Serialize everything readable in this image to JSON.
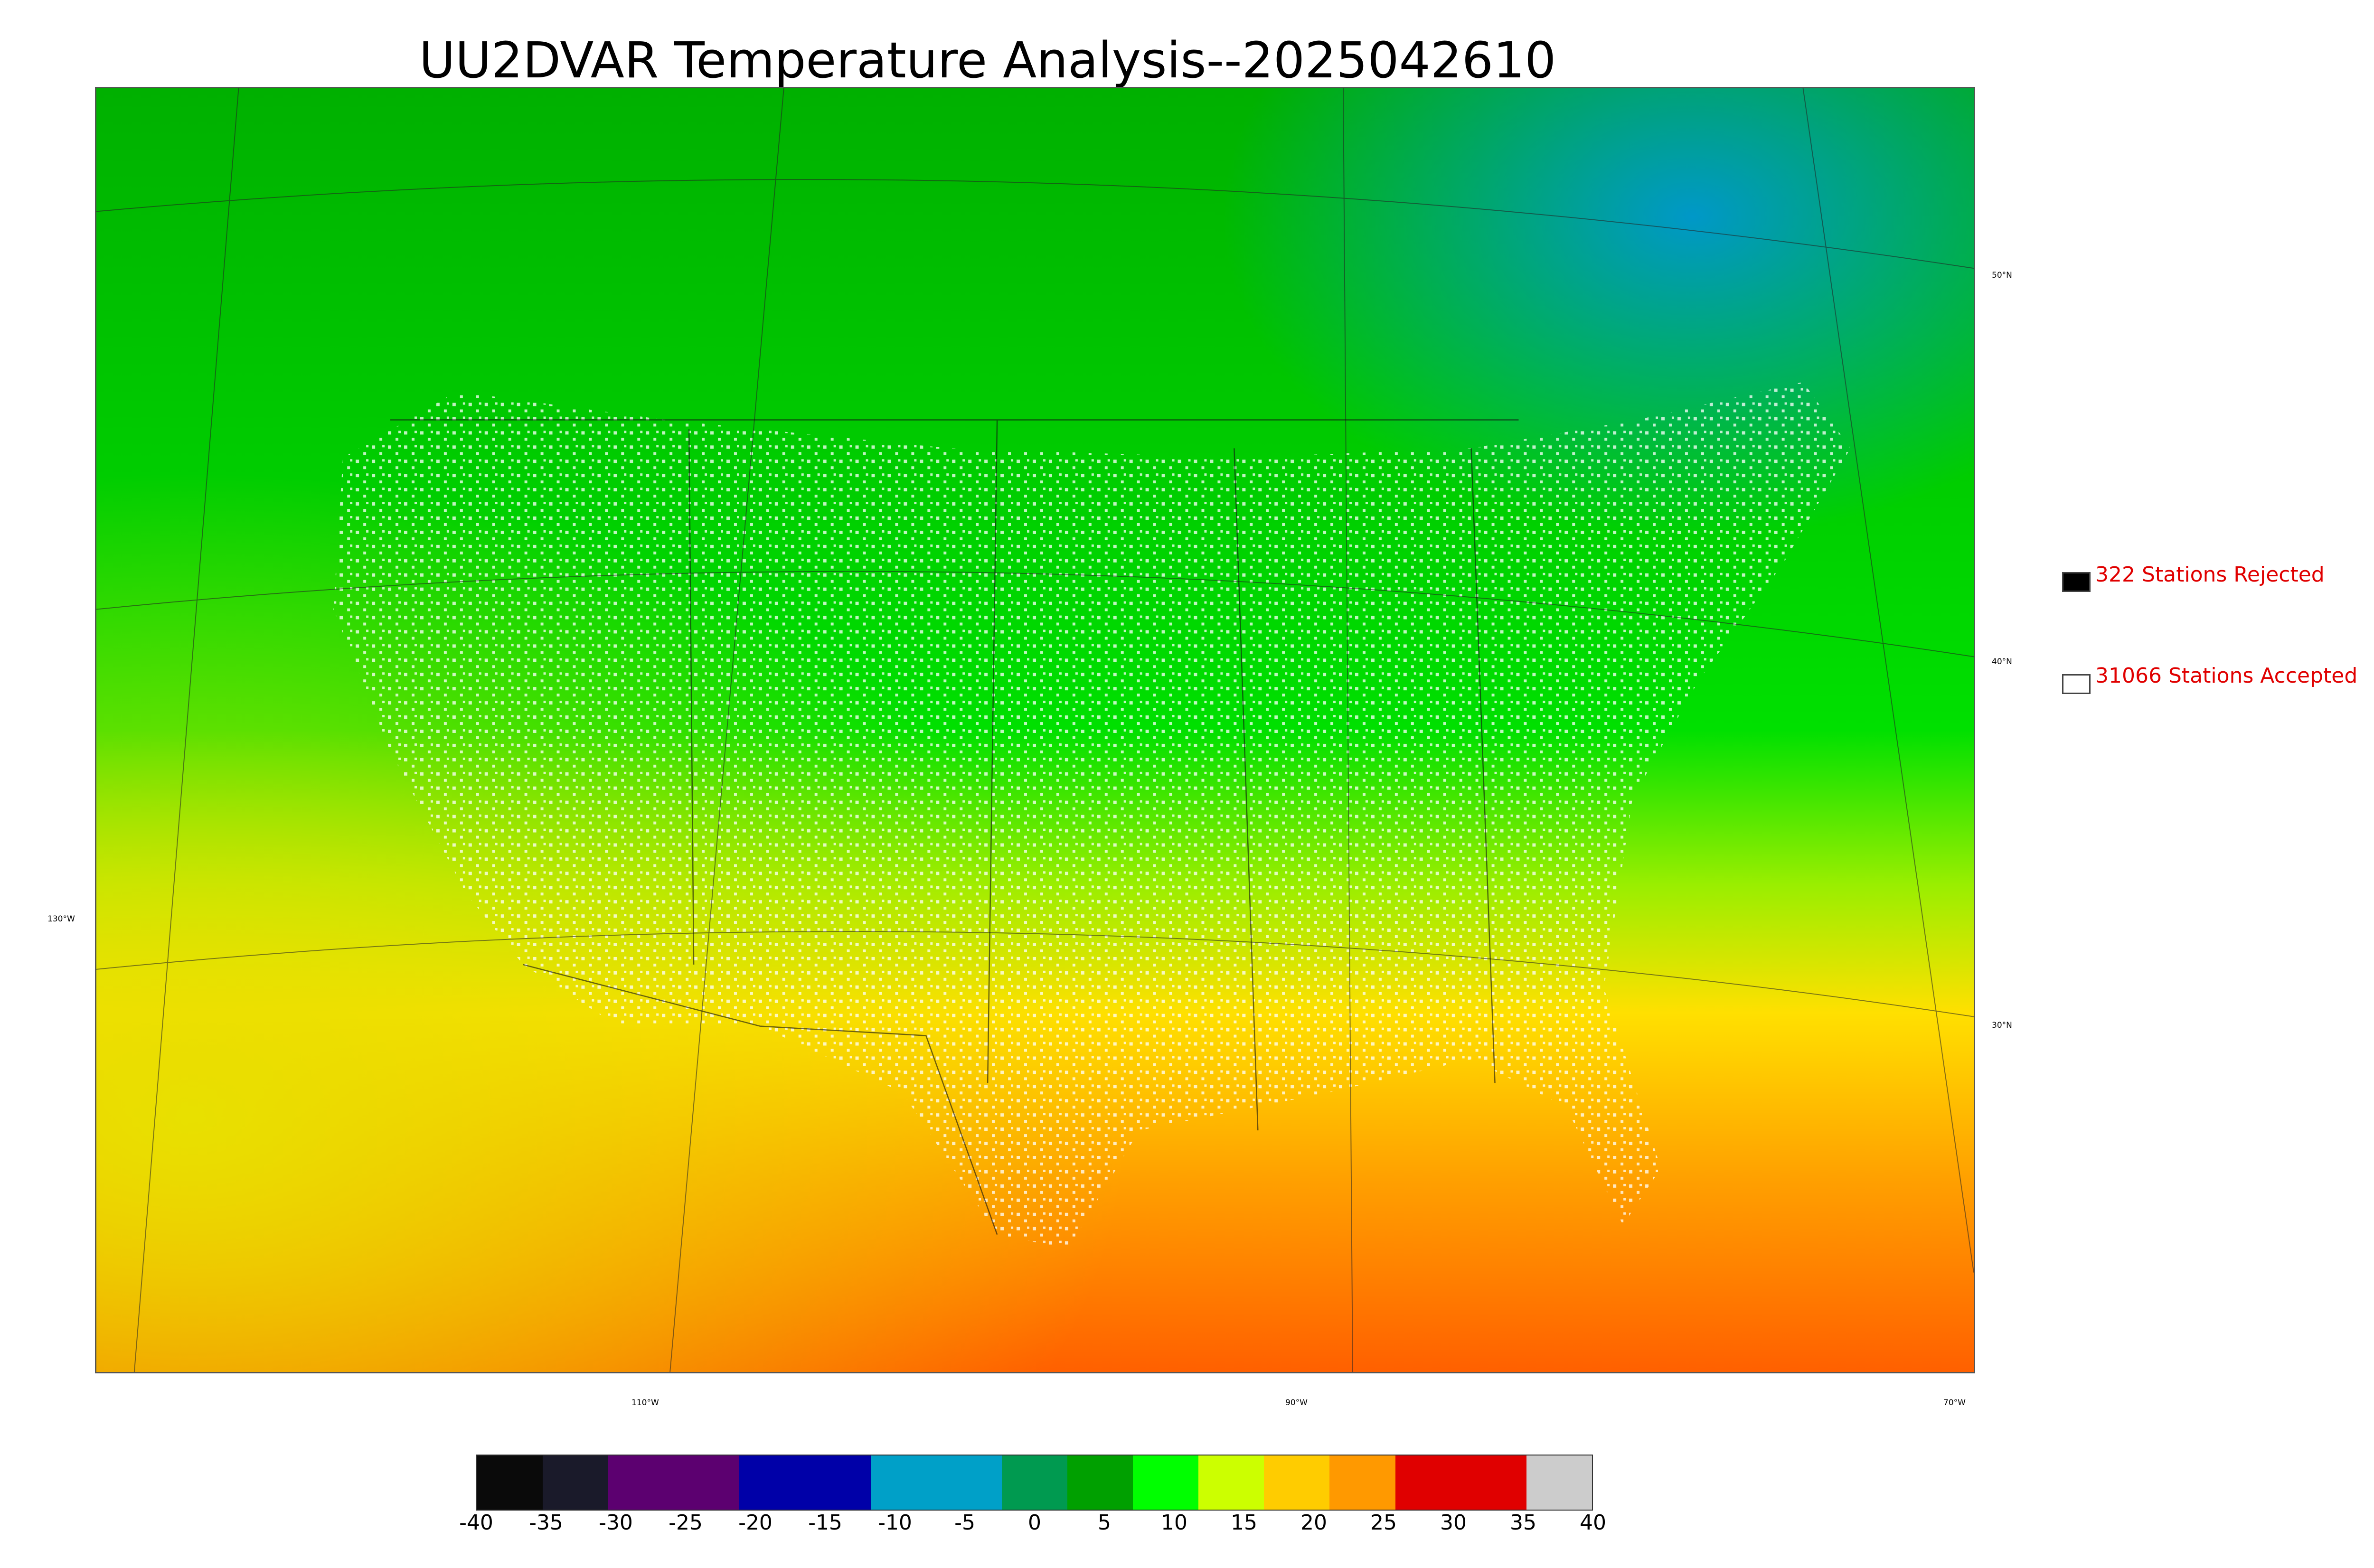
{
  "title": "UU2DVAR Temperature Analysis--2025042610",
  "legend": {
    "rejected": {
      "label": "322 Stations Rejected",
      "swatch": "#000000"
    },
    "accepted": {
      "label": "31066 Stations Accepted",
      "swatch": "#ffffff"
    }
  },
  "graticule": {
    "lat_labels": [
      "50°N",
      "40°N",
      "30°N"
    ],
    "lon_labels": [
      "130°W",
      "110°W",
      "90°W",
      "70°W"
    ]
  },
  "colorbar": {
    "ticks": [
      "-40",
      "-35",
      "-30",
      "-25",
      "-20",
      "-15",
      "-10",
      "-5",
      "0",
      "5",
      "10",
      "15",
      "20",
      "25",
      "30",
      "35",
      "40"
    ],
    "colors": [
      "#0a0a0a",
      "#1a1a2a",
      "#5c0070",
      "#5c0070",
      "#0000a8",
      "#0000a8",
      "#00a0c8",
      "#00a0c8",
      "#009a50",
      "#00a000",
      "#00ff00",
      "#ccff00",
      "#ffcc00",
      "#ff9900",
      "#e00000",
      "#e00000",
      "#cccccc"
    ]
  },
  "map": {
    "colors": {
      "north": "#00a800",
      "mid": "#00e000",
      "south": "#ffd000",
      "gulf": "#ff7000",
      "pacific": "#d8f000",
      "canada_cold": "#0098c8"
    }
  }
}
